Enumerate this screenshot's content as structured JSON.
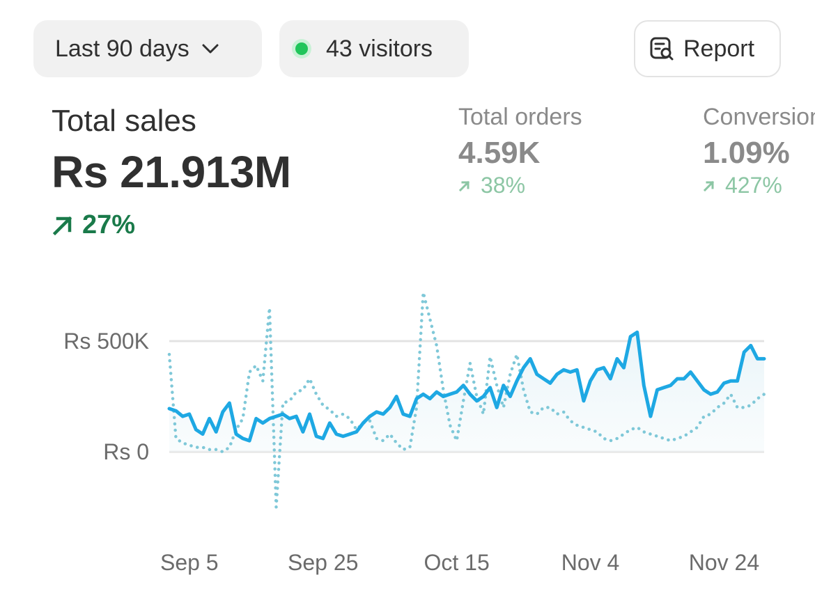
{
  "toolbar": {
    "date_range_label": "Last 90 days",
    "visitors_label": "43 visitors",
    "report_label": "Report"
  },
  "metrics": {
    "total_sales": {
      "label": "Total sales",
      "value": "Rs 21.913M",
      "change": "27%"
    },
    "total_orders": {
      "label": "Total orders",
      "value": "4.59K",
      "change": "38%"
    },
    "conversion": {
      "label": "Conversion",
      "value": "1.09%",
      "change": "427%"
    }
  },
  "colors": {
    "current_series": "#1ea8e3",
    "comparison_series": "#7fc8d8",
    "positive_strong": "#1a7a4a",
    "positive_muted": "#8cc6a4",
    "live_dot": "#20c55a"
  },
  "icons": {
    "date_range": "chevron-down-icon",
    "visitors": "live-dot-icon",
    "report": "report-search-icon",
    "change": "arrow-up-right-icon"
  },
  "chart_data": {
    "type": "line",
    "y_tick_labels": [
      "Rs 0",
      "Rs 500K"
    ],
    "y_ticks": [
      0,
      500000
    ],
    "ylim": [
      -250000,
      720000
    ],
    "x_tick_labels": [
      "Sep 5",
      "Sep 25",
      "Oct 15",
      "Nov 4",
      "Nov 24"
    ],
    "x_tick_days": [
      3,
      23,
      43,
      63,
      83
    ],
    "xlim": [
      0,
      89
    ],
    "grid": true,
    "series": [
      {
        "style": "solid",
        "values": [
          195000,
          185000,
          160000,
          170000,
          100000,
          80000,
          150000,
          90000,
          180000,
          220000,
          80000,
          60000,
          50000,
          150000,
          130000,
          150000,
          160000,
          170000,
          150000,
          160000,
          90000,
          170000,
          70000,
          60000,
          130000,
          80000,
          70000,
          80000,
          90000,
          130000,
          160000,
          180000,
          170000,
          200000,
          250000,
          170000,
          160000,
          240000,
          260000,
          240000,
          270000,
          250000,
          260000,
          270000,
          300000,
          260000,
          230000,
          250000,
          290000,
          200000,
          300000,
          250000,
          320000,
          380000,
          420000,
          350000,
          330000,
          310000,
          350000,
          370000,
          360000,
          370000,
          230000,
          320000,
          370000,
          380000,
          330000,
          420000,
          380000,
          520000,
          540000,
          300000,
          160000,
          280000,
          290000,
          300000,
          330000,
          330000,
          360000,
          320000,
          280000,
          260000,
          270000,
          310000,
          320000,
          320000,
          450000,
          480000,
          420000,
          420000
        ]
      },
      {
        "style": "dotted",
        "values": [
          440000,
          60000,
          40000,
          30000,
          20000,
          20000,
          10000,
          10000,
          0,
          20000,
          100000,
          150000,
          360000,
          390000,
          320000,
          650000,
          -250000,
          220000,
          230000,
          270000,
          280000,
          330000,
          260000,
          210000,
          190000,
          160000,
          170000,
          150000,
          100000,
          130000,
          140000,
          60000,
          50000,
          80000,
          40000,
          10000,
          20000,
          200000,
          720000,
          600000,
          480000,
          280000,
          120000,
          50000,
          230000,
          400000,
          250000,
          170000,
          430000,
          300000,
          200000,
          350000,
          440000,
          280000,
          180000,
          170000,
          200000,
          200000,
          170000,
          180000,
          140000,
          120000,
          110000,
          100000,
          90000,
          60000,
          50000,
          60000,
          80000,
          100000,
          110000,
          90000,
          80000,
          70000,
          60000,
          50000,
          60000,
          70000,
          90000,
          110000,
          160000,
          170000,
          200000,
          220000,
          260000,
          200000,
          200000,
          210000,
          240000,
          260000
        ]
      }
    ]
  }
}
